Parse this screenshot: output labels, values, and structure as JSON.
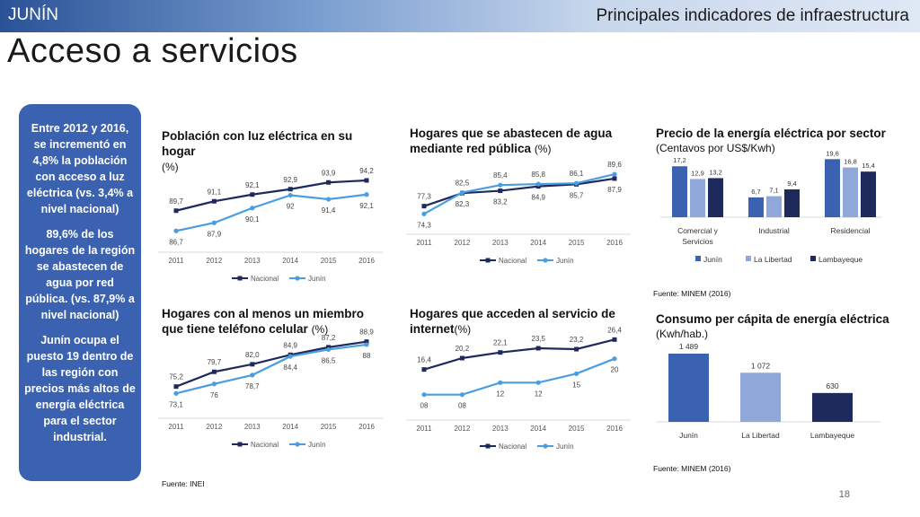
{
  "header": {
    "region": "JUNÍN",
    "section": "Principales indicadores de infraestructura",
    "title": "Acceso a servicios"
  },
  "sidebar": {
    "paragraphs": [
      "Entre 2012 y 2016, se incrementó en 4,8% la población con acceso a luz eléctrica (vs. 3,4% a nivel nacional)",
      "89,6% de los hogares de la región se abastecen de agua por red pública. (vs. 87,9% a nivel nacional)",
      "Junín ocupa el puesto 19 dentro de las región con precios más altos de energía eléctrica para el sector industrial."
    ]
  },
  "colors": {
    "nacional": "#1f2a5c",
    "junin": "#4a9de0",
    "lalibertad": "#8fa8d9",
    "lambayeque": "#1f2a5c",
    "junin_bar": "#3a62b1"
  },
  "sources": {
    "inei": "Fuente: INEI",
    "minem1": "Fuente: MINEM (2016)",
    "minem2": "Fuente: MINEM (2016)"
  },
  "page_number": "18",
  "chart_data": [
    {
      "id": "luz",
      "type": "line",
      "title": "Población con luz eléctrica en su hogar",
      "unit": "(%)",
      "x": [
        "2011",
        "2012",
        "2013",
        "2014",
        "2015",
        "2016"
      ],
      "series": [
        {
          "name": "Nacional",
          "values": [
            89.7,
            91.1,
            92.1,
            92.9,
            93.9,
            94.2
          ],
          "labels": [
            "89,7",
            "91,1",
            "92,1",
            "92,9",
            "93,9",
            "94,2"
          ]
        },
        {
          "name": "Junín",
          "values": [
            86.7,
            87.9,
            90.1,
            92,
            91.4,
            92.1
          ],
          "labels": [
            "86,7",
            "87,9",
            "90,1",
            "92",
            "91,4",
            "92,1"
          ]
        }
      ]
    },
    {
      "id": "agua",
      "type": "line",
      "title": "Hogares que se abastecen de agua mediante red pública",
      "unit": "(%)",
      "x": [
        "2011",
        "2012",
        "2013",
        "2014",
        "2015",
        "2016"
      ],
      "series": [
        {
          "name": "Nacional",
          "values": [
            77.3,
            82.3,
            83.2,
            84.9,
            85.7,
            87.9
          ],
          "labels": [
            "77,3",
            "82,3",
            "83,2",
            "84,9",
            "85,7",
            "87,9"
          ]
        },
        {
          "name": "Junín",
          "values": [
            74.3,
            82.5,
            85.4,
            85.8,
            86.1,
            89.6
          ],
          "labels": [
            "74,3",
            "82,5",
            "85,4",
            "85,8",
            "86,1",
            "89,6"
          ]
        }
      ]
    },
    {
      "id": "celular",
      "type": "line",
      "title": "Hogares con al menos un miembro que tiene teléfono celular",
      "unit": "(%)",
      "x": [
        "2011",
        "2012",
        "2013",
        "2014",
        "2015",
        "2016"
      ],
      "series": [
        {
          "name": "Nacional",
          "values": [
            75.2,
            79.7,
            82.0,
            84.9,
            87.2,
            88.9
          ],
          "labels": [
            "75,2",
            "79,7",
            "82,0",
            "84,9",
            "87,2",
            "88,9"
          ]
        },
        {
          "name": "Junín",
          "values": [
            73.1,
            76,
            78.7,
            84.4,
            86.5,
            88
          ],
          "labels": [
            "73,1",
            "76",
            "78,7",
            "84,4",
            "86,5",
            "88"
          ]
        }
      ]
    },
    {
      "id": "internet",
      "type": "line",
      "title": "Hogares que acceden al servicio de internet",
      "unit": "(%)",
      "x": [
        "2011",
        "2012",
        "2013",
        "2014",
        "2015",
        "2016"
      ],
      "series": [
        {
          "name": "Nacional",
          "values": [
            16.4,
            20.2,
            22.1,
            23.5,
            23.2,
            26.4
          ],
          "labels": [
            "16,4",
            "20,2",
            "22,1",
            "23,5",
            "23,2",
            "26,4"
          ]
        },
        {
          "name": "Junín",
          "values": [
            8,
            8,
            12,
            12,
            15,
            20
          ],
          "labels": [
            "08",
            "08",
            "12",
            "12",
            "15",
            "20"
          ]
        }
      ]
    },
    {
      "id": "precio",
      "type": "bar",
      "title": "Precio de la energía eléctrica por sector",
      "subtitle": "(Centavos por US$/Kwh)",
      "categories": [
        "Comercial y Servicios",
        "Industrial",
        "Residencial"
      ],
      "series": [
        {
          "name": "Junín",
          "values": [
            17.2,
            6.7,
            19.6
          ],
          "labels": [
            "17,2",
            "6,7",
            "19,6"
          ]
        },
        {
          "name": "La Libertad",
          "values": [
            12.9,
            7.1,
            16.8
          ],
          "labels": [
            "12,9",
            "7,1",
            "16,8"
          ]
        },
        {
          "name": "Lambayeque",
          "values": [
            13.2,
            9.4,
            15.4
          ],
          "labels": [
            "13,2",
            "9,4",
            "15,4"
          ]
        }
      ]
    },
    {
      "id": "consumo",
      "type": "bar",
      "title": "Consumo per cápita de energía eléctrica",
      "subtitle": "(Kwh/hab.)",
      "categories": [
        "Junín",
        "La Libertad",
        "Lambayeque"
      ],
      "values": [
        1489,
        1072,
        630
      ],
      "labels": [
        "1 489",
        "1 072",
        "630"
      ]
    }
  ]
}
